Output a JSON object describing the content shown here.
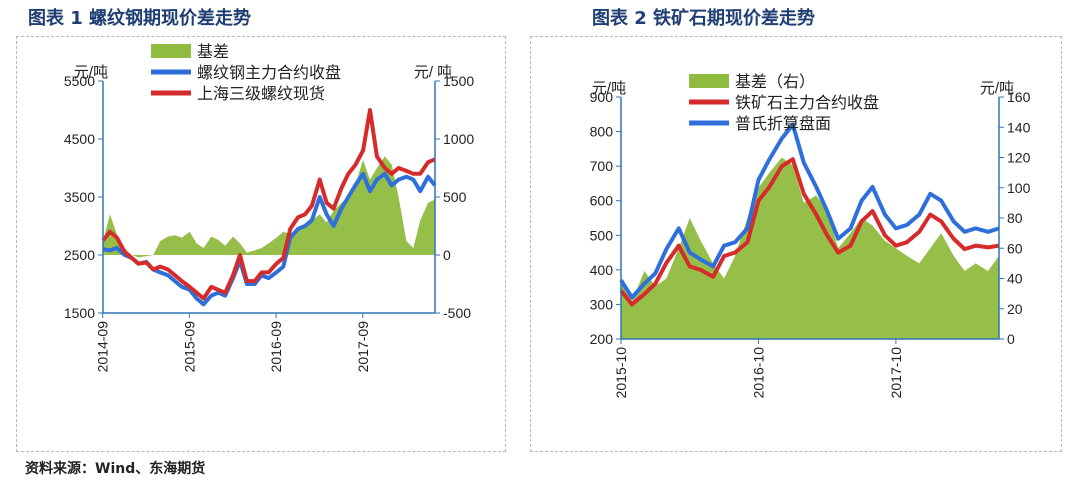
{
  "figure_1_title": "图表 1  螺纹钢期现价差走势",
  "figure_2_title": "图表 2  铁矿石期现价差走势",
  "source_text": "资料来源：Wind、东海期货",
  "colors": {
    "basis": "#8fbc3f",
    "red": "#d62b2b",
    "blue": "#2f6fdb",
    "axis": "#2e75b6"
  },
  "chart_data": [
    {
      "type": "line",
      "title": "图表 1  螺纹钢期现价差走势",
      "xlabel": "",
      "ylabel": "元/吨",
      "y2label": "元/ 吨",
      "ylim": [
        1500,
        5500
      ],
      "yticks": [
        1500,
        2500,
        3500,
        4500,
        5500
      ],
      "y2lim": [
        -500,
        1500
      ],
      "y2ticks": [
        -500,
        0,
        500,
        1000,
        1500
      ],
      "xticks": [
        "2014-09",
        "2015-09",
        "2016-09",
        "2017-09"
      ],
      "x_range": [
        2014.67,
        2018.5
      ],
      "legend": "top-left",
      "series": [
        {
          "name": "基差",
          "axis": "right",
          "style": "area",
          "x": [
            2014.67,
            2014.75,
            2014.83,
            2014.92,
            2015.0,
            2015.08,
            2015.17,
            2015.25,
            2015.33,
            2015.42,
            2015.5,
            2015.58,
            2015.67,
            2015.75,
            2015.83,
            2015.92,
            2016.0,
            2016.08,
            2016.17,
            2016.25,
            2016.33,
            2016.42,
            2016.5,
            2016.58,
            2016.67,
            2016.75,
            2016.83,
            2016.92,
            2017.0,
            2017.08,
            2017.17,
            2017.25,
            2017.33,
            2017.42,
            2017.5,
            2017.58,
            2017.67,
            2017.75,
            2017.83,
            2017.92,
            2018.0,
            2018.08,
            2018.17,
            2018.25,
            2018.33,
            2018.42,
            2018.5
          ],
          "values": [
            120,
            350,
            180,
            60,
            0,
            -20,
            -10,
            0,
            120,
            160,
            170,
            150,
            200,
            100,
            60,
            160,
            130,
            80,
            160,
            100,
            20,
            40,
            60,
            100,
            150,
            200,
            180,
            220,
            250,
            300,
            350,
            280,
            380,
            450,
            500,
            600,
            820,
            650,
            750,
            850,
            780,
            500,
            120,
            60,
            300,
            450,
            480
          ]
        },
        {
          "name": "螺纹钢主力合约收盘",
          "axis": "left",
          "x": [
            2014.67,
            2014.75,
            2014.83,
            2014.92,
            2015.0,
            2015.08,
            2015.17,
            2015.25,
            2015.33,
            2015.42,
            2015.5,
            2015.58,
            2015.67,
            2015.75,
            2015.83,
            2015.92,
            2016.0,
            2016.08,
            2016.17,
            2016.25,
            2016.33,
            2016.42,
            2016.5,
            2016.58,
            2016.67,
            2016.75,
            2016.83,
            2016.92,
            2017.0,
            2017.08,
            2017.17,
            2017.25,
            2017.33,
            2017.42,
            2017.5,
            2017.58,
            2017.67,
            2017.75,
            2017.83,
            2017.92,
            2018.0,
            2018.08,
            2018.17,
            2018.25,
            2018.33,
            2018.42,
            2018.5
          ],
          "values": [
            2600,
            2580,
            2620,
            2500,
            2450,
            2350,
            2380,
            2250,
            2200,
            2150,
            2050,
            1950,
            1900,
            1750,
            1650,
            1800,
            1850,
            1800,
            2100,
            2400,
            2000,
            2000,
            2150,
            2100,
            2200,
            2300,
            2800,
            2950,
            3000,
            3100,
            3500,
            3200,
            3000,
            3300,
            3500,
            3700,
            3900,
            3600,
            3800,
            3900,
            3700,
            3800,
            3850,
            3800,
            3600,
            3850,
            3700
          ]
        },
        {
          "name": "上海三级螺纹现货",
          "axis": "left",
          "x": [
            2014.67,
            2014.75,
            2014.83,
            2014.92,
            2015.0,
            2015.08,
            2015.17,
            2015.25,
            2015.33,
            2015.42,
            2015.5,
            2015.58,
            2015.67,
            2015.75,
            2015.83,
            2015.92,
            2016.0,
            2016.08,
            2016.17,
            2016.25,
            2016.33,
            2016.42,
            2016.5,
            2016.58,
            2016.67,
            2016.75,
            2016.83,
            2016.92,
            2017.0,
            2017.08,
            2017.17,
            2017.25,
            2017.33,
            2017.42,
            2017.5,
            2017.58,
            2017.67,
            2017.75,
            2017.83,
            2017.92,
            2018.0,
            2018.08,
            2018.17,
            2018.25,
            2018.33,
            2018.42,
            2018.5
          ],
          "values": [
            2750,
            2900,
            2800,
            2550,
            2450,
            2350,
            2370,
            2250,
            2300,
            2250,
            2150,
            2050,
            1950,
            1850,
            1750,
            1950,
            1900,
            1850,
            2150,
            2500,
            2050,
            2050,
            2200,
            2200,
            2350,
            2450,
            2950,
            3150,
            3200,
            3350,
            3800,
            3400,
            3300,
            3650,
            3900,
            4050,
            4300,
            5000,
            4200,
            4000,
            3900,
            4000,
            3950,
            3900,
            3900,
            4100,
            4150
          ]
        }
      ]
    },
    {
      "type": "line",
      "title": "图表 2  铁矿石期现价差走势",
      "xlabel": "",
      "ylabel": "元/吨",
      "y2label": "元/吨",
      "ylim": [
        200,
        900
      ],
      "yticks": [
        200,
        300,
        400,
        500,
        600,
        700,
        800,
        900
      ],
      "y2lim": [
        0,
        160
      ],
      "y2ticks": [
        0,
        20,
        40,
        60,
        80,
        100,
        120,
        140,
        160
      ],
      "xticks": [
        "2015-10",
        "2016-10",
        "2017-10"
      ],
      "x_range": [
        2015.75,
        2018.5
      ],
      "legend": "top-left",
      "series": [
        {
          "name": "基差（右）",
          "axis": "right",
          "style": "area",
          "x": [
            2015.75,
            2015.83,
            2015.92,
            2016.0,
            2016.08,
            2016.17,
            2016.25,
            2016.33,
            2016.42,
            2016.5,
            2016.58,
            2016.67,
            2016.75,
            2016.83,
            2016.92,
            2017.0,
            2017.08,
            2017.17,
            2017.25,
            2017.33,
            2017.42,
            2017.5,
            2017.58,
            2017.67,
            2017.75,
            2017.83,
            2017.92,
            2018.0,
            2018.08,
            2018.17,
            2018.25,
            2018.33,
            2018.42,
            2018.5
          ],
          "values": [
            40,
            25,
            45,
            35,
            40,
            60,
            80,
            65,
            50,
            40,
            55,
            80,
            100,
            110,
            120,
            115,
            90,
            95,
            85,
            60,
            70,
            80,
            75,
            65,
            60,
            55,
            50,
            60,
            70,
            55,
            45,
            50,
            45,
            55
          ]
        },
        {
          "name": "铁矿石主力合约收盘",
          "axis": "left",
          "x": [
            2015.75,
            2015.83,
            2015.92,
            2016.0,
            2016.08,
            2016.17,
            2016.25,
            2016.33,
            2016.42,
            2016.5,
            2016.58,
            2016.67,
            2016.75,
            2016.83,
            2016.92,
            2017.0,
            2017.08,
            2017.17,
            2017.25,
            2017.33,
            2017.42,
            2017.5,
            2017.58,
            2017.67,
            2017.75,
            2017.83,
            2017.92,
            2018.0,
            2018.08,
            2018.17,
            2018.25,
            2018.33,
            2018.42,
            2018.5
          ],
          "values": [
            340,
            300,
            330,
            360,
            420,
            470,
            410,
            400,
            380,
            440,
            450,
            480,
            600,
            640,
            700,
            720,
            620,
            560,
            500,
            450,
            470,
            540,
            570,
            500,
            470,
            480,
            510,
            560,
            540,
            490,
            460,
            470,
            465,
            470
          ]
        },
        {
          "name": "普氏折算盘面",
          "axis": "left",
          "x": [
            2015.75,
            2015.83,
            2015.92,
            2016.0,
            2016.08,
            2016.17,
            2016.25,
            2016.33,
            2016.42,
            2016.5,
            2016.58,
            2016.67,
            2016.75,
            2016.83,
            2016.92,
            2017.0,
            2017.08,
            2017.17,
            2017.25,
            2017.33,
            2017.42,
            2017.5,
            2017.58,
            2017.67,
            2017.75,
            2017.83,
            2017.92,
            2018.0,
            2018.08,
            2018.17,
            2018.25,
            2018.33,
            2018.42,
            2018.5
          ],
          "values": [
            370,
            320,
            360,
            390,
            460,
            520,
            450,
            430,
            410,
            470,
            480,
            520,
            660,
            720,
            780,
            820,
            710,
            640,
            570,
            490,
            520,
            600,
            640,
            560,
            520,
            530,
            560,
            620,
            600,
            540,
            510,
            520,
            510,
            520
          ]
        }
      ]
    }
  ]
}
